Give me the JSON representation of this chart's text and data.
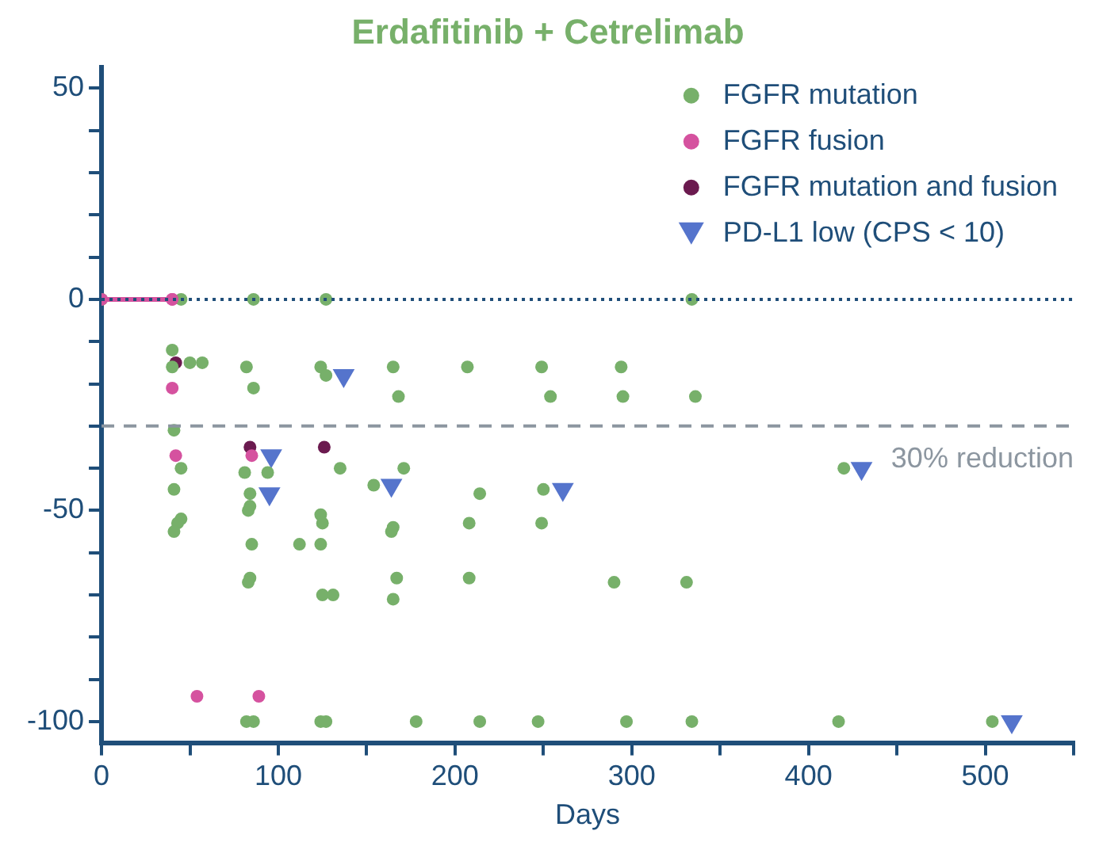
{
  "chart_data": {
    "type": "scatter",
    "title": "Erdafitinib + Cetrelimab",
    "xlabel": "Days",
    "xlim": [
      0,
      550
    ],
    "ylim": [
      -105,
      55
    ],
    "xticks": [
      0,
      {
        "value": 50,
        "label": null
      },
      100,
      {
        "value": 150,
        "label": null
      },
      200,
      {
        "value": 250,
        "label": null
      },
      300,
      {
        "value": 350,
        "label": null
      },
      400,
      {
        "value": 450,
        "label": null
      },
      500,
      {
        "value": 550,
        "label": null
      }
    ],
    "yticks": [
      -100,
      {
        "value": -90,
        "label": null
      },
      {
        "value": -80,
        "label": null
      },
      {
        "value": -70,
        "label": null
      },
      {
        "value": -60,
        "label": null
      },
      -50,
      {
        "value": -40,
        "label": null
      },
      {
        "value": -30,
        "label": null
      },
      {
        "value": -20,
        "label": null
      },
      {
        "value": -10,
        "label": null
      },
      0,
      {
        "value": 10,
        "label": null
      },
      {
        "value": 20,
        "label": null
      },
      {
        "value": 30,
        "label": null
      },
      {
        "value": 40,
        "label": null
      },
      50
    ],
    "grid": false,
    "legend": "top right",
    "ref_lines": [
      {
        "axis": "y",
        "value": 0,
        "color": "#1f4e79",
        "line_style": "dotted"
      },
      {
        "axis": "y",
        "value": -30,
        "label": "30% reduction",
        "color": "#8c96a0",
        "line_style": "dashed"
      }
    ],
    "series": [
      {
        "type": "line",
        "color": "#d5529f",
        "marker": "circle",
        "line_style": "solid",
        "x": [
          0,
          40
        ],
        "values": [
          0,
          0
        ]
      },
      {
        "name": "FGFR mutation",
        "color": "#77b06a",
        "marker": "circle",
        "x": [
          0,
          45,
          86,
          127,
          40,
          40,
          50,
          57,
          82,
          86,
          124,
          127,
          41,
          45,
          41,
          45,
          43,
          41,
          81,
          94,
          84,
          84,
          83,
          85,
          84,
          83,
          112,
          124,
          124,
          125,
          135,
          125,
          131,
          154,
          165,
          207,
          249,
          168,
          254,
          171,
          214,
          250,
          165,
          164,
          208,
          249,
          167,
          208,
          165,
          334,
          294,
          295,
          336,
          420,
          290,
          331,
          82,
          86,
          124,
          127,
          178,
          214,
          247,
          297,
          334,
          417,
          504
        ],
        "values": [
          0,
          0,
          0,
          0,
          -12,
          -16,
          -15,
          -15,
          -16,
          -21,
          -16,
          -18,
          -31,
          -40,
          -45,
          -52,
          -53,
          -55,
          -41,
          -41,
          -46,
          -49,
          -50,
          -58,
          -66,
          -67,
          -58,
          -58,
          -51,
          -53,
          -40,
          -70,
          -70,
          -44,
          -16,
          -16,
          -16,
          -23,
          -23,
          -40,
          -46,
          -45,
          -54,
          -55,
          -53,
          -53,
          -66,
          -66,
          -71,
          0,
          -16,
          -23,
          -23,
          -40,
          -67,
          -67,
          -100,
          -100,
          -100,
          -100,
          -100,
          -100,
          -100,
          -100,
          -100,
          -100,
          -100
        ]
      },
      {
        "name": "FGFR fusion",
        "color": "#d5529f",
        "marker": "circle",
        "x": [
          40,
          40,
          42,
          85,
          54,
          89
        ],
        "values": [
          0,
          -21,
          -37,
          -37,
          -94,
          -94
        ]
      },
      {
        "name": "FGFR mutation and fusion",
        "color": "#6b1a4f",
        "marker": "circle",
        "x": [
          42,
          84,
          126
        ],
        "values": [
          -15,
          -35,
          -35
        ]
      },
      {
        "name": "PD-L1 low (CPS < 10)",
        "color": "#5574cc",
        "marker": "triangle",
        "x": [
          137,
          96,
          95,
          164,
          261,
          430,
          515
        ],
        "values": [
          -18,
          -37,
          -46,
          -44,
          -45,
          -40,
          -100
        ]
      }
    ]
  }
}
